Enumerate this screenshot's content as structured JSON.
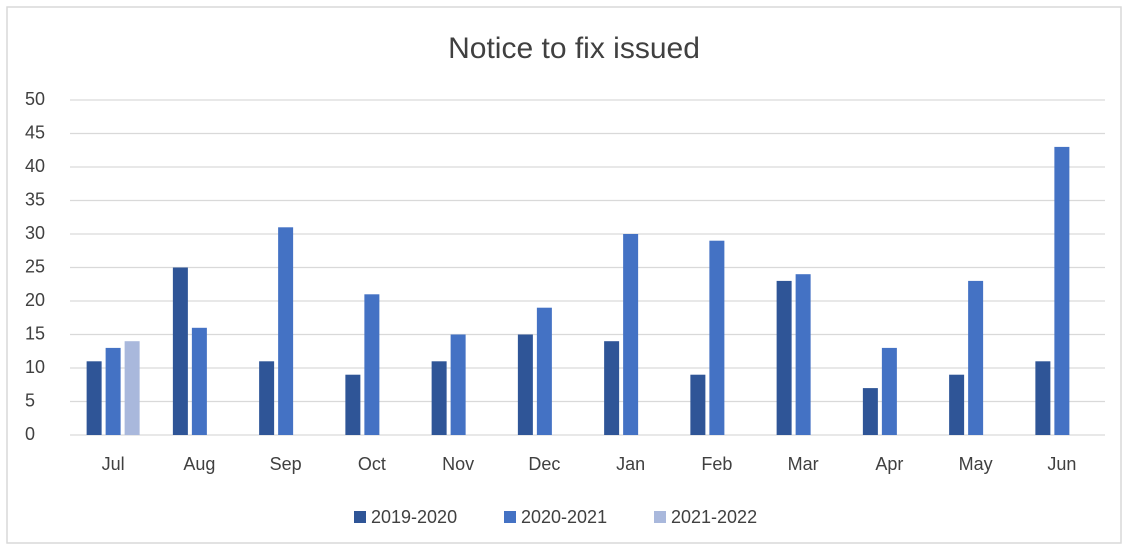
{
  "chart_data": {
    "type": "bar",
    "title": "Notice to fix issued",
    "categories": [
      "Jul",
      "Aug",
      "Sep",
      "Oct",
      "Nov",
      "Dec",
      "Jan",
      "Feb",
      "Mar",
      "Apr",
      "May",
      "Jun"
    ],
    "series": [
      {
        "name": "2019-2020",
        "color": "#2f5597",
        "values": [
          11,
          25,
          11,
          9,
          11,
          15,
          14,
          9,
          23,
          7,
          9,
          11
        ]
      },
      {
        "name": "2020-2021",
        "color": "#4472c4",
        "values": [
          13,
          16,
          31,
          21,
          15,
          19,
          30,
          29,
          24,
          13,
          23,
          43
        ]
      },
      {
        "name": "2021-2022",
        "color": "#a9b8dc",
        "values": [
          14,
          null,
          null,
          null,
          null,
          null,
          null,
          null,
          null,
          null,
          null,
          null
        ]
      }
    ],
    "ylim": [
      0,
      50
    ],
    "yticks": [
      0,
      5,
      10,
      15,
      20,
      25,
      30,
      35,
      40,
      45,
      50
    ],
    "grid": true,
    "legend": "bottom"
  }
}
